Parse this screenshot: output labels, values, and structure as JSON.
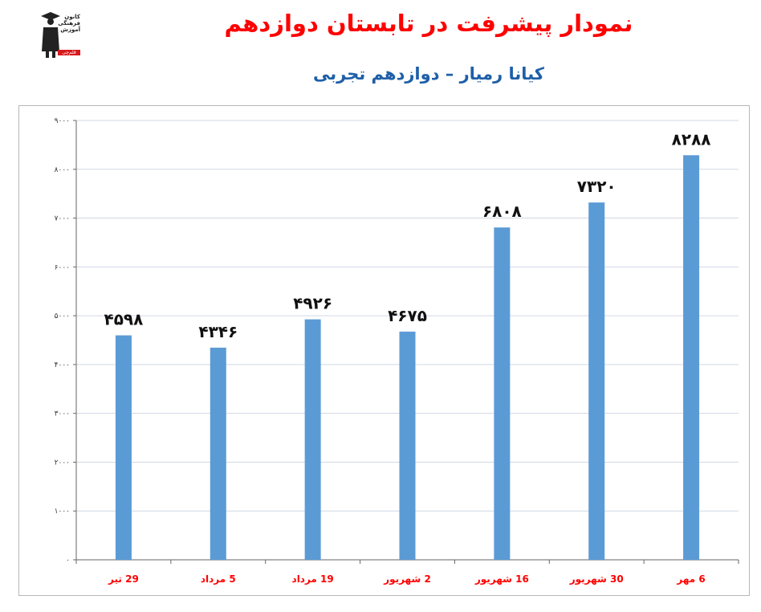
{
  "header": {
    "title": "نمودار پیشرفت در تابستان دوازدهم",
    "subtitle": "کیانا رمیار – دوازدهم تجربی",
    "logo_lines": [
      "کانون",
      "فرهنگی",
      "آموزش"
    ],
    "logo_badge": "قلم‌چی"
  },
  "chart_data": {
    "type": "bar",
    "title": "نمودار پیشرفت در تابستان دوازدهم",
    "subtitle": "کیانا رمیار – دوازدهم تجربی",
    "categories": [
      "29 تیر",
      "5 مرداد",
      "19 مرداد",
      "2 شهریور",
      "16 شهریور",
      "30 شهریور",
      "6 مهر"
    ],
    "values": [
      4598,
      4346,
      4926,
      4675,
      6808,
      7320,
      8288
    ],
    "value_labels": [
      "۴۵۹۸",
      "۴۳۴۶",
      "۴۹۲۶",
      "۴۶۷۵",
      "۶۸۰۸",
      "۷۳۲۰",
      "۸۲۸۸"
    ],
    "y_ticks": [
      0,
      1000,
      2000,
      3000,
      4000,
      5000,
      6000,
      7000,
      8000,
      9000
    ],
    "y_tick_labels": [
      "۰",
      "۱۰۰۰",
      "۲۰۰۰",
      "۳۰۰۰",
      "۴۰۰۰",
      "۵۰۰۰",
      "۶۰۰۰",
      "۷۰۰۰",
      "۸۰۰۰",
      "۹۰۰۰"
    ],
    "ylim": [
      0,
      9000
    ],
    "grid": true,
    "legend": "none",
    "colors": {
      "bar": "#5b9bd5",
      "grid": "#d0d7e5",
      "category_label": "#ff0000",
      "title": "#ff0000",
      "subtitle": "#1f5fa8"
    }
  }
}
